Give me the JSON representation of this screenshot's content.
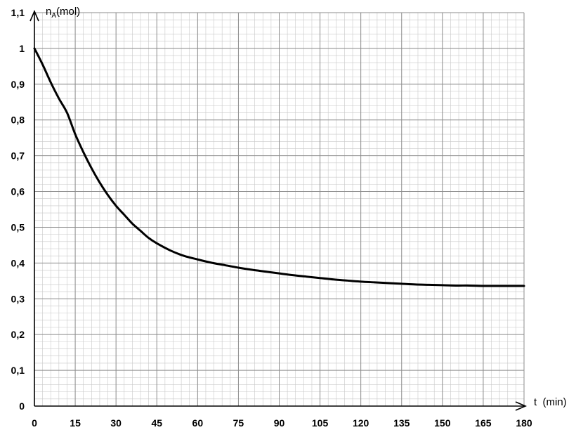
{
  "chart_data": {
    "type": "line",
    "title": "",
    "xlabel": "t  (min)",
    "ylabel": {
      "main": "n",
      "subscript": "A",
      "unit": "(mol)"
    },
    "xlim": [
      0,
      180
    ],
    "ylim": [
      0,
      1.1
    ],
    "x_ticks": [
      0,
      15,
      30,
      45,
      60,
      75,
      90,
      105,
      120,
      135,
      150,
      165,
      180
    ],
    "x_tick_labels": [
      "0",
      "15",
      "30",
      "45",
      "60",
      "75",
      "90",
      "105",
      "120",
      "135",
      "150",
      "165",
      "180"
    ],
    "y_ticks": [
      0,
      0.1,
      0.2,
      0.3,
      0.4,
      0.5,
      0.6,
      0.7,
      0.8,
      0.9,
      1,
      1.1
    ],
    "y_tick_labels": [
      "0",
      "0,1",
      "0,2",
      "0,3",
      "0,4",
      "0,5",
      "0,6",
      "0,7",
      "0,8",
      "0,9",
      "1",
      "1,1"
    ],
    "grid": true,
    "grid_major_x_step": 15,
    "grid_minor_x_step": 3,
    "grid_major_y_step": 0.1,
    "grid_minor_y_step": 0.02,
    "series": [
      {
        "color": "#000000",
        "x": [
          0,
          3,
          6,
          9,
          12,
          15,
          18,
          21,
          24,
          27,
          30,
          33,
          36,
          39,
          42,
          45,
          50,
          55,
          60,
          65,
          70,
          75,
          80,
          85,
          90,
          95,
          100,
          105,
          110,
          115,
          120,
          125,
          130,
          135,
          140,
          145,
          150,
          155,
          160,
          165,
          170,
          175,
          180
        ],
        "y": [
          1.0,
          0.955,
          0.905,
          0.86,
          0.82,
          0.76,
          0.71,
          0.665,
          0.625,
          0.59,
          0.56,
          0.535,
          0.51,
          0.49,
          0.47,
          0.455,
          0.435,
          0.42,
          0.41,
          0.401,
          0.394,
          0.387,
          0.381,
          0.376,
          0.371,
          0.366,
          0.362,
          0.358,
          0.354,
          0.351,
          0.348,
          0.346,
          0.344,
          0.342,
          0.34,
          0.339,
          0.338,
          0.337,
          0.337,
          0.336,
          0.336,
          0.336,
          0.336
        ]
      }
    ]
  }
}
